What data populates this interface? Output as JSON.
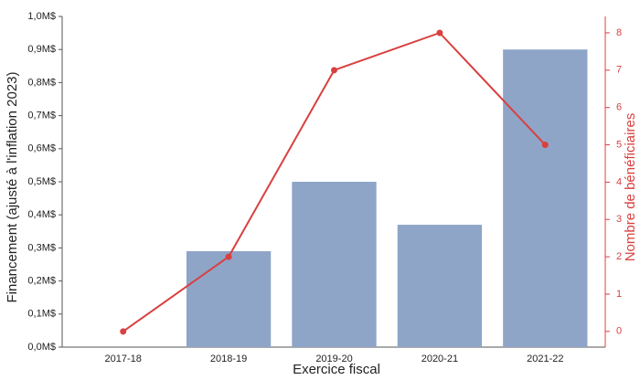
{
  "chart_data": {
    "type": "combo",
    "x_label": "Exercice fiscal",
    "y_label": "Financement (ajusté à l'inflation 2023)",
    "y2_label": "Nombre de bénéficiaires",
    "categories": [
      "2017-18",
      "2018-19",
      "2019-20",
      "2020-21",
      "2021-22"
    ],
    "series": [
      {
        "name": "Financement",
        "type": "bar",
        "color": "#8ea5c8",
        "values": [
          0,
          0.29,
          0.5,
          0.37,
          0.9
        ]
      },
      {
        "name": "Nombre de bénéficiaires",
        "type": "line",
        "axis": "y2",
        "color": "#d94040",
        "values": [
          0,
          2,
          7,
          8,
          5
        ]
      }
    ],
    "ylim": [
      0,
      1.0
    ],
    "yticks": [
      {
        "value": 0,
        "label": "0,0M$"
      },
      {
        "value": 0.1,
        "label": "0,1M$"
      },
      {
        "value": 0.2,
        "label": "0,2M$"
      },
      {
        "value": 0.3,
        "label": "0,3M$"
      },
      {
        "value": 0.4,
        "label": "0,4M$"
      },
      {
        "value": 0.5,
        "label": "0,5M$"
      },
      {
        "value": 0.6,
        "label": "0,6M$"
      },
      {
        "value": 0.7,
        "label": "0,7M$"
      },
      {
        "value": 0.8,
        "label": "0,8M$"
      },
      {
        "value": 0.9,
        "label": "0,9M$"
      },
      {
        "value": 1.0,
        "label": "1,0M$"
      }
    ],
    "y2lim": [
      -0.42,
      8.44
    ],
    "y2ticks": [
      0,
      1,
      2,
      3,
      4,
      5,
      6,
      7,
      8
    ],
    "y2_color": "#d94040"
  }
}
